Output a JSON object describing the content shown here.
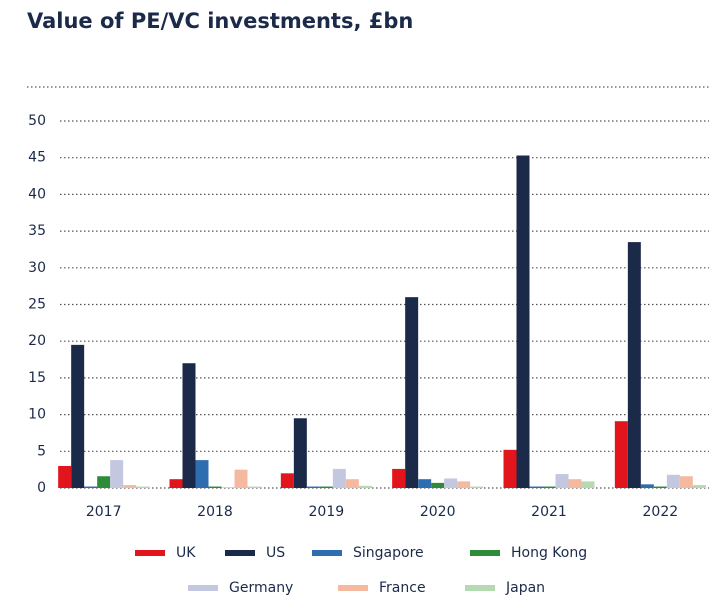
{
  "chart_data": {
    "type": "bar",
    "title": "Value of PE/VC investments, £bn",
    "categories": [
      "2017",
      "2018",
      "2019",
      "2020",
      "2021",
      "2022"
    ],
    "series": [
      {
        "name": "UK",
        "color": "#e2141c",
        "values": [
          3.0,
          1.2,
          2.0,
          2.6,
          5.2,
          9.1
        ]
      },
      {
        "name": "US",
        "color": "#1c2a4a",
        "values": [
          19.5,
          17.0,
          9.5,
          26.0,
          45.3,
          33.5
        ]
      },
      {
        "name": "Singapore",
        "color": "#2f6db1",
        "values": [
          0.2,
          3.8,
          0.2,
          1.2,
          0.2,
          0.5
        ]
      },
      {
        "name": "Hong Kong",
        "color": "#2e8b3a",
        "values": [
          1.6,
          0.2,
          0.2,
          0.7,
          0.2,
          0.2
        ]
      },
      {
        "name": "Germany",
        "color": "#c3c8e0",
        "values": [
          3.8,
          0.1,
          2.6,
          1.3,
          1.9,
          1.8
        ]
      },
      {
        "name": "France",
        "color": "#f5b9a0",
        "values": [
          0.4,
          2.5,
          1.2,
          0.9,
          1.2,
          1.6
        ]
      },
      {
        "name": "Japan",
        "color": "#b5d9b0",
        "values": [
          0.2,
          0.2,
          0.3,
          0.2,
          0.9,
          0.4
        ]
      }
    ],
    "ylim": [
      0,
      50
    ],
    "yticks": [
      0,
      5,
      10,
      15,
      20,
      25,
      30,
      35,
      40,
      45,
      50
    ],
    "grid": true
  }
}
